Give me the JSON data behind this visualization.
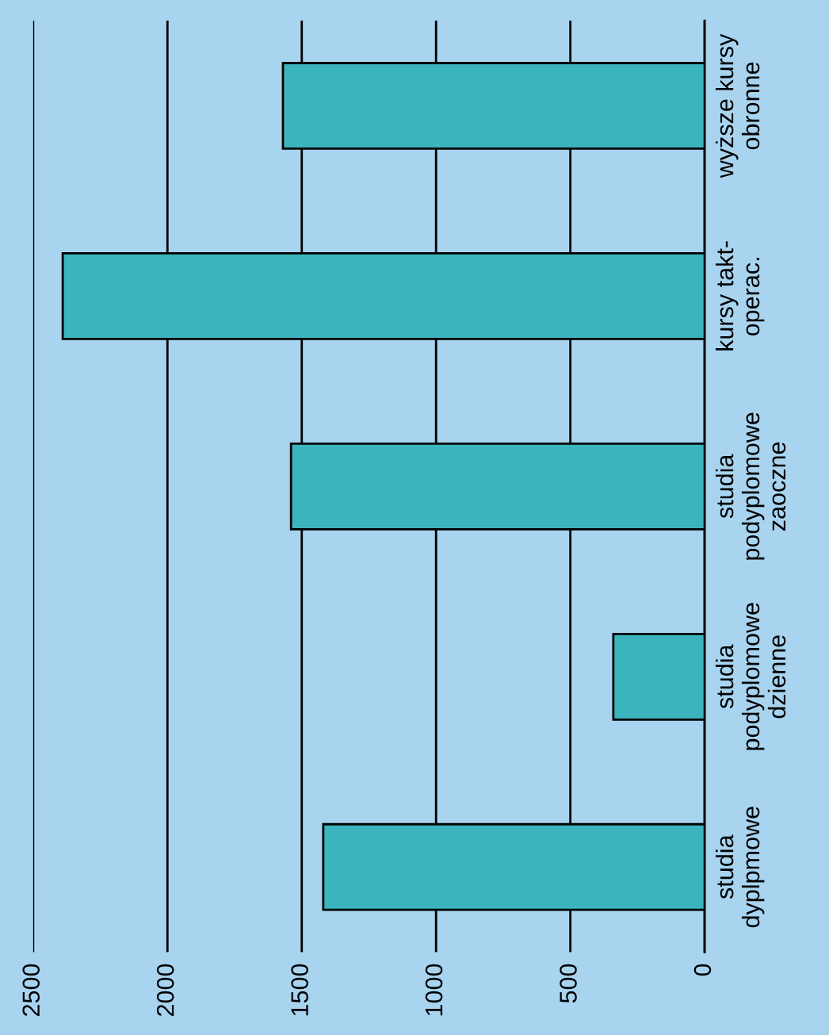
{
  "chart_data": {
    "type": "bar",
    "orientation": "horizontal",
    "categories": [
      "wyższe kursy\nobronne",
      "kursy takt-\noperac.",
      "studia\npodyplomowe\nzaoczne",
      "studia\npodyplomowe\ndzienne",
      "studia\ndyplpmowe"
    ],
    "values": [
      1570,
      2390,
      1540,
      340,
      1420
    ],
    "color": "#3cb4be",
    "xlim": [
      2500,
      0
    ],
    "xticks": [
      0,
      500,
      1000,
      1500,
      2000,
      2500
    ],
    "grid": "x",
    "legend": false
  }
}
